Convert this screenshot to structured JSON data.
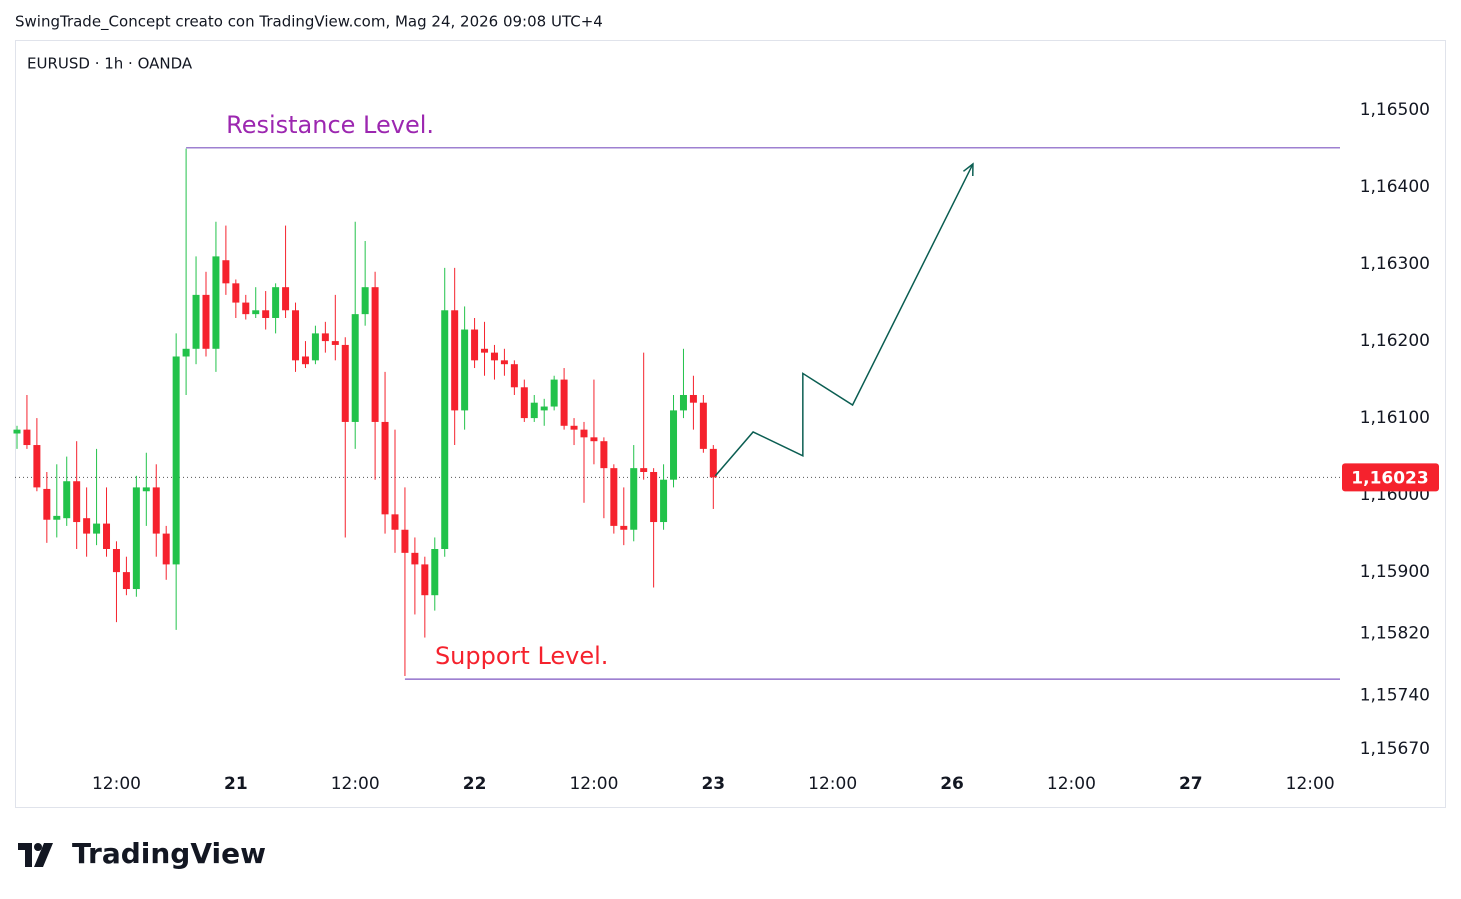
{
  "header": "SwingTrade_Concept creato con TradingView.com, Mag 24, 2026 09:08 UTC+4",
  "logo": "TradingView",
  "chart_data": {
    "type": "candlestick",
    "title": "EURUSD · 1h · OANDA",
    "up_color": "#22c24a",
    "down_color": "#f5222d",
    "x": [
      0,
      1,
      2,
      3,
      4,
      5,
      6,
      7,
      8,
      9,
      10,
      11,
      12,
      13,
      14,
      15,
      16,
      17,
      18,
      19,
      20,
      21,
      22,
      23,
      24,
      25,
      26,
      27,
      28,
      29,
      30,
      31,
      32,
      33,
      34,
      35,
      36,
      37,
      38,
      39,
      40,
      41,
      42,
      43,
      44,
      45,
      46,
      47,
      48,
      49,
      50,
      51,
      52,
      53,
      54,
      55,
      56,
      57,
      58,
      59,
      60,
      61,
      62,
      63,
      64,
      65,
      66,
      67,
      68,
      69,
      70
    ],
    "open": [
      1.1608,
      1.16085,
      1.16065,
      1.16008,
      1.15968,
      1.1597,
      1.16018,
      1.1597,
      1.1595,
      1.15963,
      1.1593,
      1.159,
      1.15878,
      1.16005,
      1.1601,
      1.1595,
      1.1591,
      1.1618,
      1.1619,
      1.1626,
      1.1619,
      1.16305,
      1.16275,
      1.1625,
      1.16235,
      1.1624,
      1.1623,
      1.1627,
      1.1624,
      1.1618,
      1.16175,
      1.1621,
      1.162,
      1.16195,
      1.16095,
      1.16235,
      1.1627,
      1.16095,
      1.15975,
      1.15955,
      1.15925,
      1.1591,
      1.1587,
      1.1593,
      1.1624,
      1.1611,
      1.16215,
      1.1619,
      1.16185,
      1.16175,
      1.1617,
      1.1614,
      1.161,
      1.1611,
      1.16115,
      1.1615,
      1.1609,
      1.16085,
      1.16075,
      1.1607,
      1.16035,
      1.1596,
      1.15955,
      1.16035,
      1.1603,
      1.15965,
      1.1602,
      1.1611,
      1.1613,
      1.1612,
      1.1606
    ],
    "high": [
      1.1609,
      1.1613,
      1.161,
      1.1603,
      1.1604,
      1.1605,
      1.1607,
      1.1601,
      1.1606,
      1.1601,
      1.1594,
      1.1592,
      1.16025,
      1.16055,
      1.1604,
      1.1596,
      1.1621,
      1.1645,
      1.1631,
      1.1629,
      1.16355,
      1.1635,
      1.1628,
      1.1626,
      1.1627,
      1.16265,
      1.16275,
      1.1635,
      1.1625,
      1.162,
      1.1622,
      1.16225,
      1.1626,
      1.16205,
      1.16355,
      1.1633,
      1.1629,
      1.1616,
      1.16085,
      1.1601,
      1.15945,
      1.1592,
      1.15945,
      1.16295,
      1.16295,
      1.16245,
      1.1623,
      1.16225,
      1.16195,
      1.1619,
      1.16175,
      1.1615,
      1.1613,
      1.16125,
      1.16155,
      1.16165,
      1.161,
      1.16095,
      1.1615,
      1.16075,
      1.1604,
      1.1601,
      1.16065,
      1.16185,
      1.16035,
      1.1604,
      1.1613,
      1.1619,
      1.16155,
      1.1613,
      1.16065
    ],
    "low": [
      1.1606,
      1.1606,
      1.16005,
      1.15938,
      1.15945,
      1.1596,
      1.1593,
      1.1592,
      1.15935,
      1.1592,
      1.15835,
      1.1587,
      1.15868,
      1.1596,
      1.1592,
      1.1589,
      1.15825,
      1.1613,
      1.1617,
      1.1618,
      1.1616,
      1.1626,
      1.1623,
      1.16228,
      1.1623,
      1.16215,
      1.1621,
      1.1623,
      1.1616,
      1.16165,
      1.1617,
      1.16185,
      1.16175,
      1.15945,
      1.1606,
      1.1622,
      1.1602,
      1.1595,
      1.15925,
      1.15765,
      1.15845,
      1.15815,
      1.1585,
      1.1592,
      1.16065,
      1.16085,
      1.16165,
      1.16155,
      1.1615,
      1.16155,
      1.1613,
      1.16095,
      1.16095,
      1.1609,
      1.1611,
      1.16085,
      1.16065,
      1.1599,
      1.1604,
      1.1597,
      1.1595,
      1.15935,
      1.1594,
      1.1602,
      1.1588,
      1.15955,
      1.1601,
      1.161,
      1.16085,
      1.16055,
      1.15982
    ],
    "close": [
      1.16085,
      1.16065,
      1.1601,
      1.15968,
      1.15973,
      1.16018,
      1.15965,
      1.1595,
      1.15963,
      1.1593,
      1.159,
      1.15878,
      1.1601,
      1.1601,
      1.1595,
      1.1591,
      1.1618,
      1.1619,
      1.1626,
      1.1619,
      1.1631,
      1.16275,
      1.1625,
      1.16235,
      1.1624,
      1.1623,
      1.1627,
      1.1624,
      1.16175,
      1.1617,
      1.1621,
      1.162,
      1.16195,
      1.16095,
      1.16235,
      1.1627,
      1.16095,
      1.15975,
      1.15955,
      1.15925,
      1.1591,
      1.1587,
      1.1593,
      1.1624,
      1.1611,
      1.16215,
      1.16175,
      1.16185,
      1.16175,
      1.1617,
      1.1614,
      1.161,
      1.1612,
      1.16115,
      1.1615,
      1.1609,
      1.16085,
      1.16075,
      1.1607,
      1.16035,
      1.1596,
      1.15955,
      1.16035,
      1.1603,
      1.15965,
      1.1602,
      1.1611,
      1.1613,
      1.1612,
      1.1606,
      1.16023
    ],
    "xlim": [
      -0.2,
      133
    ],
    "xticks": [
      {
        "value": 10,
        "label": "12:00"
      },
      {
        "value": 22,
        "label": "21"
      },
      {
        "value": 34,
        "label": "12:00"
      },
      {
        "value": 46,
        "label": "22"
      },
      {
        "value": 58,
        "label": "12:00"
      },
      {
        "value": 70,
        "label": "23"
      },
      {
        "value": 82,
        "label": "12:00"
      },
      {
        "value": 94,
        "label": "26"
      },
      {
        "value": 106,
        "label": "12:00"
      },
      {
        "value": 118,
        "label": "27"
      },
      {
        "value": 130,
        "label": "12:00"
      }
    ],
    "ylim": [
      1.15643,
      1.16591
    ],
    "yticks": [
      {
        "value": 1.165,
        "label": "1,16500"
      },
      {
        "value": 1.164,
        "label": "1,16400"
      },
      {
        "value": 1.163,
        "label": "1,16300"
      },
      {
        "value": 1.162,
        "label": "1,16200"
      },
      {
        "value": 1.161,
        "label": "1,16100"
      },
      {
        "value": 1.16,
        "label": "1,16000"
      },
      {
        "value": 1.159,
        "label": "1,15900"
      },
      {
        "value": 1.1582,
        "label": "1,15820"
      },
      {
        "value": 1.1574,
        "label": "1,15740"
      },
      {
        "value": 1.1567,
        "label": "1,15670"
      }
    ],
    "last_price": {
      "value": 1.16023,
      "label": "1,16023",
      "color": "#f5222d"
    },
    "levels": [
      {
        "label": "Resistance Level.",
        "value": 1.16451,
        "x": 17,
        "color": "#9c27b0",
        "line_color": "#7e57c2"
      },
      {
        "label": "Support Level.",
        "value": 1.15761,
        "x": 39,
        "color": "#f5222d",
        "line_color": "#7e57c2"
      }
    ],
    "projection": {
      "color": "#0b5e52",
      "x": [
        70.2,
        74,
        79,
        79,
        84,
        96.1
      ],
      "y": [
        1.16025,
        1.16082,
        1.16051,
        1.16158,
        1.16117,
        1.1643
      ]
    }
  }
}
